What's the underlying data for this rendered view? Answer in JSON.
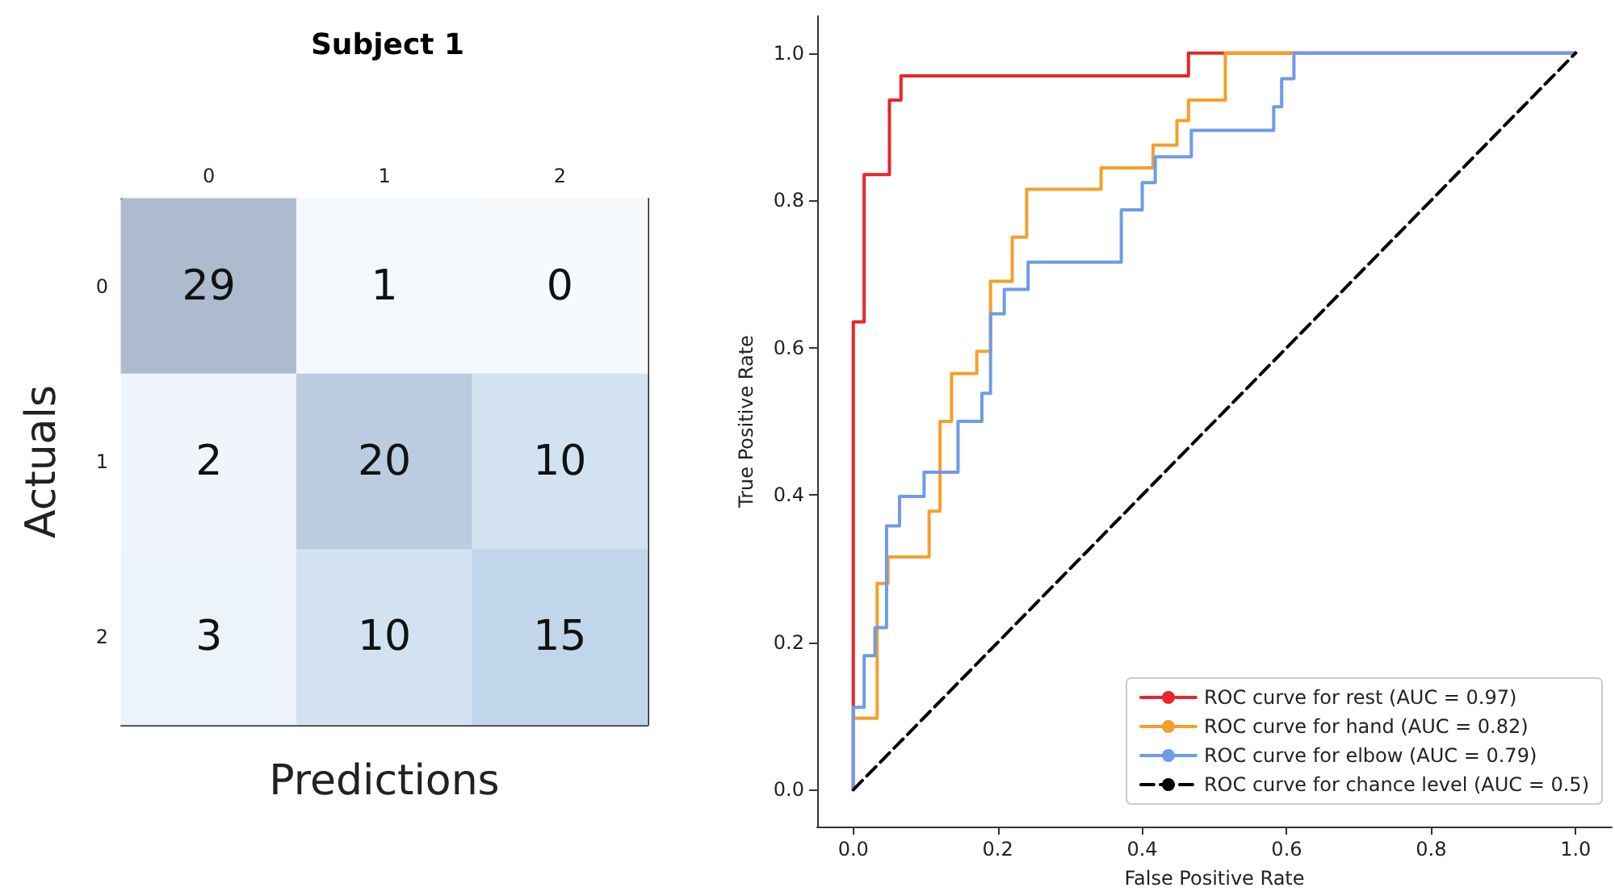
{
  "chart_data": [
    {
      "type": "heatmap",
      "title": "Subject 1",
      "xlabel": "Predictions",
      "ylabel": "Actuals",
      "categories": [
        "0",
        "1",
        "2"
      ],
      "y_categories": [
        "0",
        "1",
        "2"
      ],
      "cells": [
        [
          29,
          1,
          0
        ],
        [
          2,
          20,
          10
        ],
        [
          3,
          10,
          15
        ]
      ],
      "data_labels": true
    },
    {
      "type": "line",
      "xlabel": "False Positive Rate",
      "ylabel": "True Positive Rate",
      "xlim": [
        -0.05,
        1.05
      ],
      "ylim": [
        -0.05,
        1.05
      ],
      "xticks": [
        {
          "value": 0,
          "label": "0.0"
        },
        {
          "value": 0.2,
          "label": "0.2"
        },
        {
          "value": 0.4,
          "label": "0.4"
        },
        {
          "value": 0.6,
          "label": "0.6"
        },
        {
          "value": 0.8,
          "label": "0.8"
        },
        {
          "value": 1,
          "label": "1.0"
        }
      ],
      "yticks": [
        {
          "value": 0,
          "label": "0.0"
        },
        {
          "value": 0.2,
          "label": "0.2"
        },
        {
          "value": 0.4,
          "label": "0.4"
        },
        {
          "value": 0.6,
          "label": "0.6"
        },
        {
          "value": 0.8,
          "label": "0.8"
        },
        {
          "value": 1,
          "label": "1.0"
        }
      ],
      "legend": "bottom right",
      "marker": "none",
      "grid": false,
      "series": [
        {
          "name": "ROC curve for rest (AUC = 0.97)",
          "color": "#e8262b",
          "x": [
            0,
            0,
            0.015,
            0.015,
            0.05,
            0.05,
            0.066,
            0.066,
            0.464,
            0.464,
            1
          ],
          "values": [
            0,
            0.635,
            0.635,
            0.835,
            0.835,
            0.936,
            0.936,
            0.969,
            0.969,
            1,
            1
          ]
        },
        {
          "name": "ROC curve for hand (AUC = 0.82)",
          "color": "#f5a02a",
          "x": [
            0,
            0,
            0.033,
            0.033,
            0.048,
            0.048,
            0.105,
            0.105,
            0.12,
            0.12,
            0.136,
            0.136,
            0.171,
            0.171,
            0.19,
            0.19,
            0.22,
            0.22,
            0.24,
            0.24,
            0.343,
            0.343,
            0.415,
            0.415,
            0.448,
            0.448,
            0.464,
            0.464,
            0.515,
            0.515,
            1
          ],
          "values": [
            0,
            0.097,
            0.097,
            0.28,
            0.28,
            0.316,
            0.316,
            0.378,
            0.378,
            0.5,
            0.5,
            0.565,
            0.565,
            0.595,
            0.595,
            0.69,
            0.69,
            0.75,
            0.75,
            0.815,
            0.815,
            0.844,
            0.844,
            0.875,
            0.875,
            0.908,
            0.908,
            0.936,
            0.936,
            1,
            1
          ]
        },
        {
          "name": "ROC curve for elbow (AUC = 0.79)",
          "color": "#6f9be8",
          "x": [
            0,
            0,
            0.015,
            0.015,
            0.03,
            0.03,
            0.046,
            0.046,
            0.064,
            0.064,
            0.098,
            0.098,
            0.145,
            0.145,
            0.178,
            0.178,
            0.19,
            0.19,
            0.209,
            0.209,
            0.242,
            0.242,
            0.371,
            0.371,
            0.4,
            0.4,
            0.418,
            0.418,
            0.468,
            0.468,
            0.582,
            0.582,
            0.593,
            0.593,
            0.61,
            0.61,
            1
          ],
          "values": [
            0,
            0.112,
            0.112,
            0.182,
            0.182,
            0.22,
            0.22,
            0.358,
            0.358,
            0.398,
            0.398,
            0.431,
            0.431,
            0.5,
            0.5,
            0.538,
            0.538,
            0.646,
            0.646,
            0.679,
            0.679,
            0.716,
            0.716,
            0.787,
            0.787,
            0.824,
            0.824,
            0.859,
            0.859,
            0.895,
            0.895,
            0.927,
            0.927,
            0.965,
            0.965,
            1,
            1
          ]
        },
        {
          "name": "ROC curve for chance level (AUC = 0.5)",
          "color": "#000000",
          "line_style": "dashed",
          "x": [
            0,
            1
          ],
          "values": [
            0,
            1
          ]
        }
      ]
    }
  ]
}
